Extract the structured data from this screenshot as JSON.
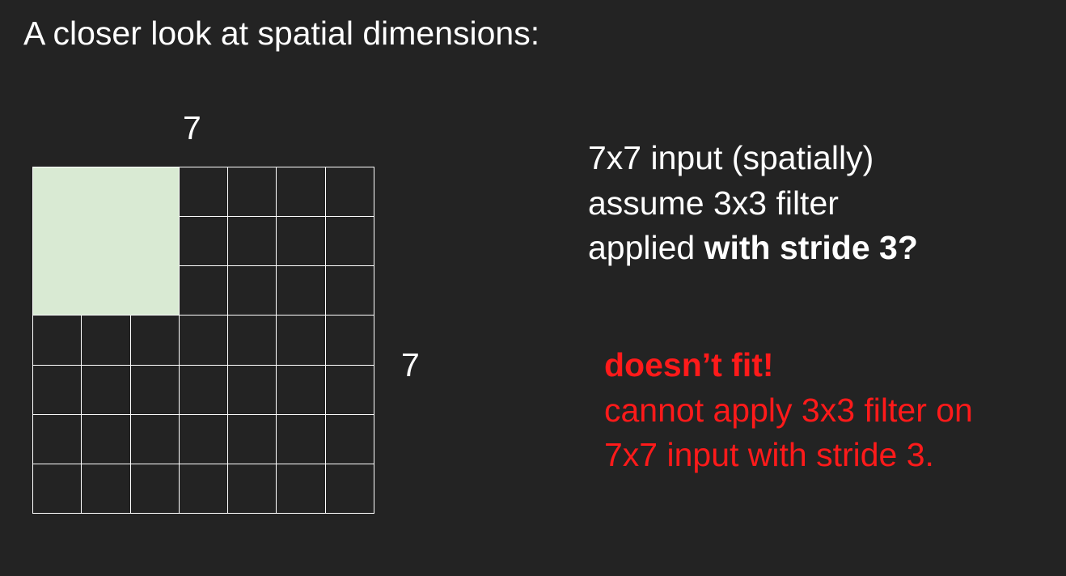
{
  "title": "A closer look at spatial dimensions:",
  "grid": {
    "width_label": "7",
    "height_label": "7",
    "rows": 7,
    "cols": 7,
    "filter_size": 3,
    "filter_color": "#d9ead3",
    "line_color": "#ffffff"
  },
  "description": {
    "line1": "7x7 input (spatially)",
    "line2": "assume 3x3 filter",
    "line3_prefix": "applied ",
    "line3_bold": "with stride 3?"
  },
  "warning": {
    "color": "#ff1a1a",
    "title": "doesn’t fit!",
    "line1": "cannot apply 3x3 filter on",
    "line2": "7x7 input with stride 3."
  }
}
